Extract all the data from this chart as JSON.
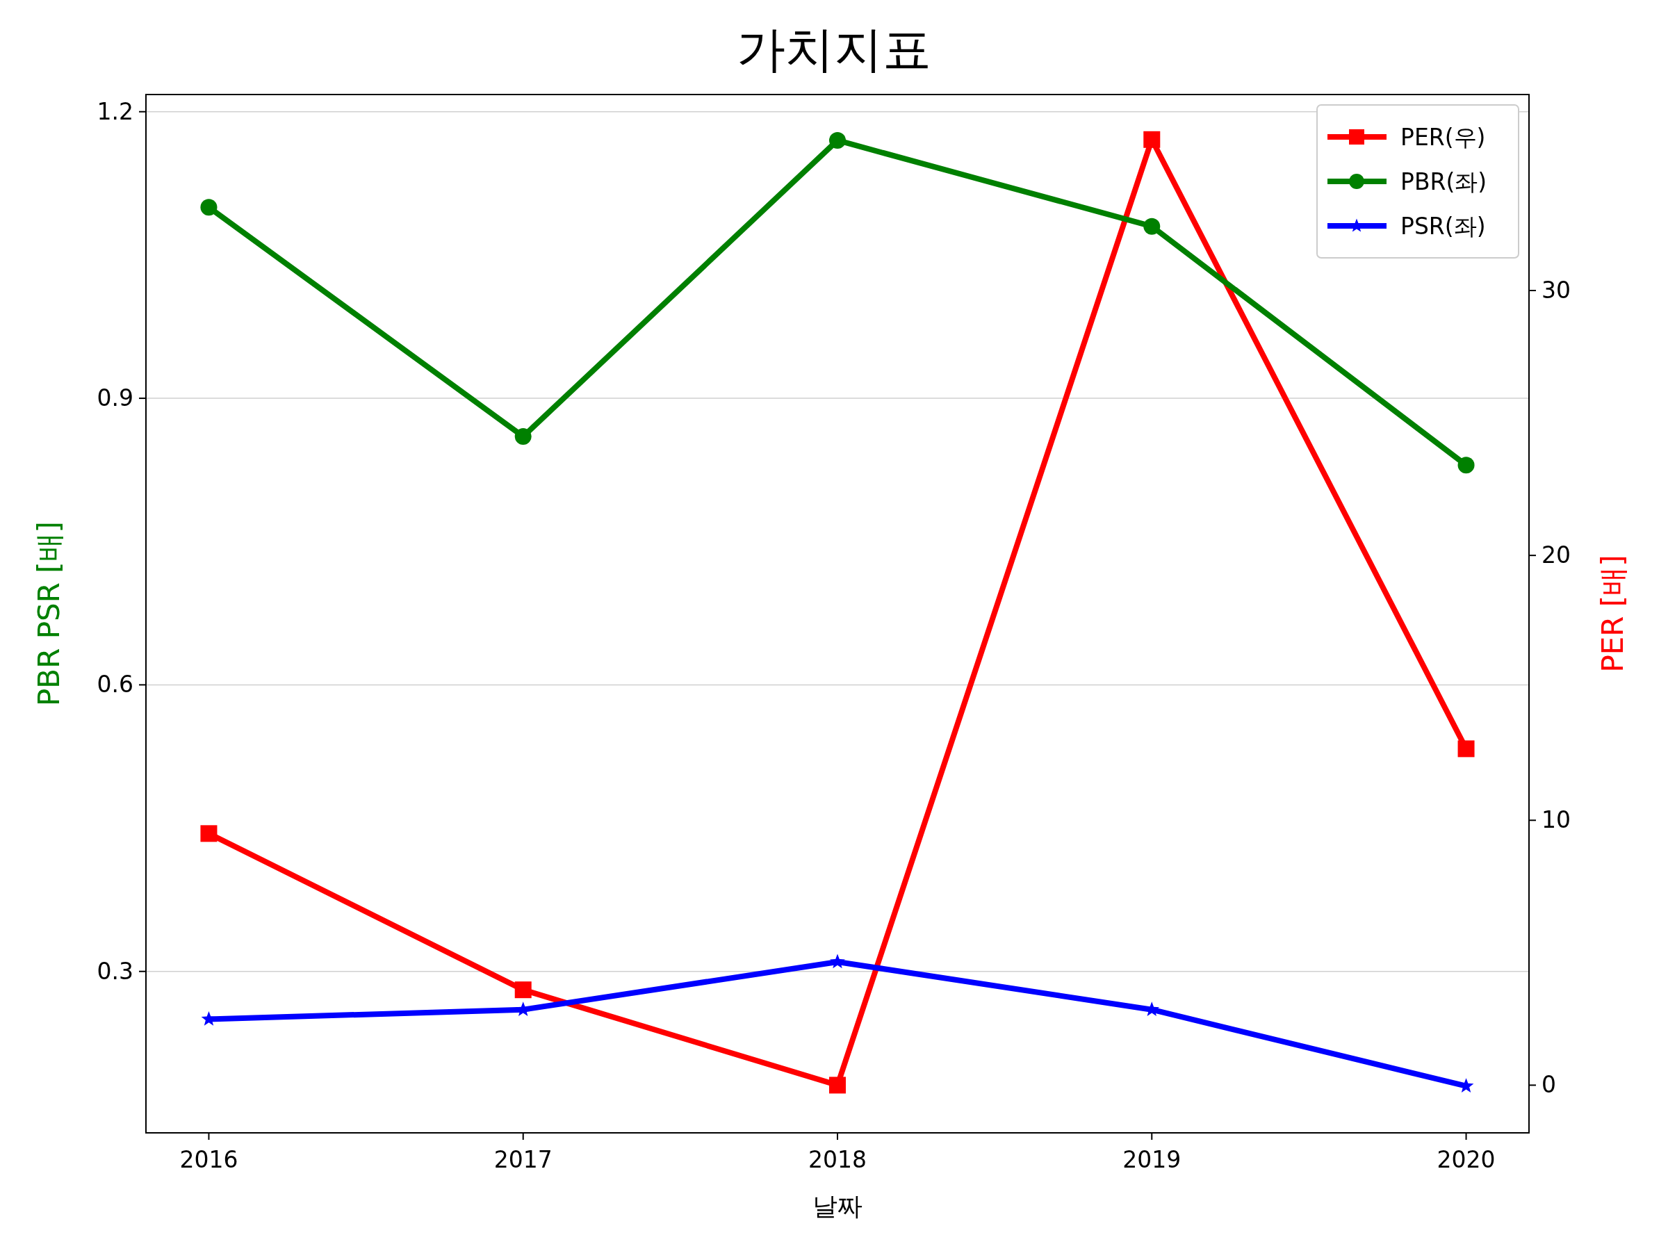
{
  "chart_data": {
    "type": "line",
    "title": "가치지표",
    "xlabel": "날짜",
    "ylabel": "PBR PSR [배]",
    "y2label": "PER [배]",
    "x": [
      2016,
      2017,
      2018,
      2019,
      2020
    ],
    "xlim": [
      2015.8,
      2020.2
    ],
    "xticks": [
      2016,
      2017,
      2018,
      2019,
      2020
    ],
    "ylim": [
      0.131,
      1.218
    ],
    "yticks": [
      0.3,
      0.6,
      0.9,
      1.2
    ],
    "y2lim": [
      -1.8,
      37.4
    ],
    "y2ticks": [
      0,
      10,
      20,
      30
    ],
    "grid": "y",
    "legend": "top right",
    "series": [
      {
        "name": "PER(우)",
        "color": "#ff0000",
        "axis": "y2",
        "marker": "square",
        "values": [
          9.5,
          3.6,
          0,
          35.7,
          12.7
        ]
      },
      {
        "name": "PBR(좌)",
        "color": "#008000",
        "axis": "y",
        "marker": "circle",
        "values": [
          1.1,
          0.86,
          1.17,
          1.08,
          0.83
        ]
      },
      {
        "name": "PSR(좌)",
        "color": "#0000ff",
        "axis": "y",
        "marker": "star",
        "values": [
          0.25,
          0.26,
          0.31,
          0.26,
          0.18
        ]
      }
    ]
  }
}
